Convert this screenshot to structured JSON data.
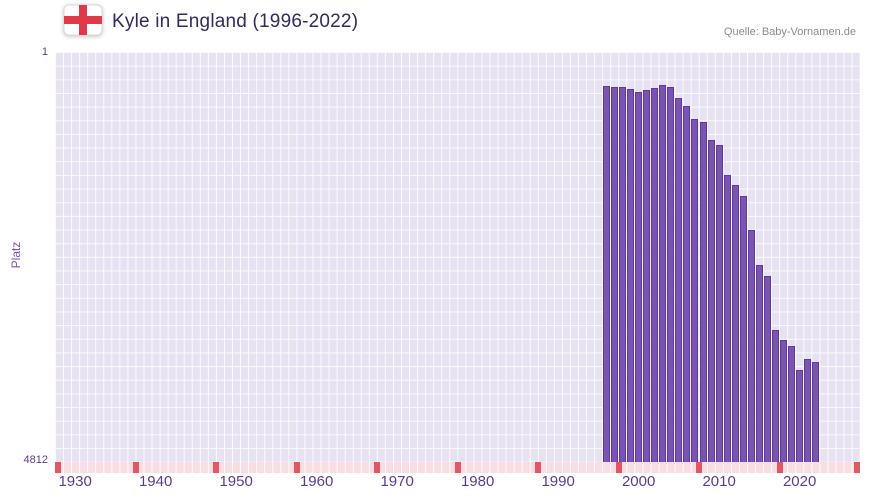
{
  "header": {
    "title": "Kyle in England (1996-2022)",
    "source": "Quelle: Baby-Vornamen.de",
    "flag_icon": "england-st-george-cross-flag"
  },
  "chart_data": {
    "type": "bar",
    "title": "Kyle in England (1996-2022)",
    "xlabel": "",
    "ylabel": "Platz",
    "y_axis": {
      "min": 1,
      "max": 4812,
      "inverted": true,
      "top_label": "1",
      "bottom_label": "4812"
    },
    "x_range": [
      1927.5,
      2027.5
    ],
    "x_ticks": [
      1930,
      1940,
      1950,
      1960,
      1970,
      1980,
      1990,
      2000,
      2010,
      2020
    ],
    "grid": true,
    "legend": "none",
    "years": [
      1996,
      1997,
      1998,
      1999,
      2000,
      2001,
      2002,
      2003,
      2004,
      2005,
      2006,
      2007,
      2008,
      2009,
      2010,
      2011,
      2012,
      2013,
      2014,
      2015,
      2016,
      2017,
      2018,
      2019,
      2020,
      2021,
      2022
    ],
    "ranks": [
      400,
      410,
      412,
      430,
      465,
      445,
      420,
      390,
      415,
      540,
      630,
      790,
      820,
      1030,
      1090,
      1440,
      1560,
      1690,
      2090,
      2500,
      2630,
      3260,
      3380,
      3450,
      3730,
      3600,
      3640
    ],
    "colors": {
      "bar": "#7b54b2",
      "bar_border": "#5d3b97",
      "plot_background": "#e7e2f1",
      "grid_line": "#ffffff",
      "axis_text": "#5c3a96",
      "baseline_background": "#f8dde2",
      "baseline_tick": "#e25764",
      "title_text": "#35295e",
      "source_text": "#8b8b8b",
      "flag_red": "#e03a4a"
    }
  }
}
